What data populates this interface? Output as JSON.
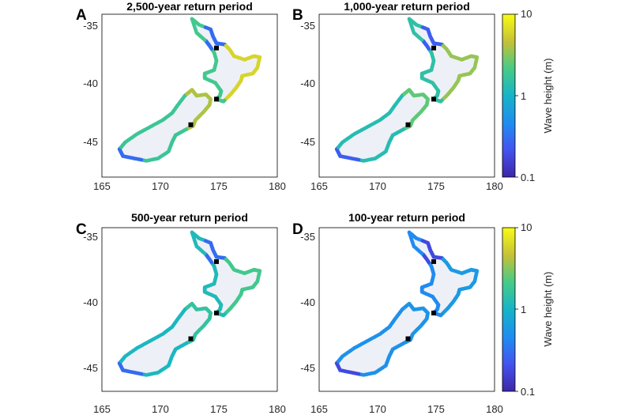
{
  "figure": {
    "panels": [
      {
        "label": "A",
        "title": "2,500-year return period"
      },
      {
        "label": "B",
        "title": "1,000-year return period"
      },
      {
        "label": "C",
        "title": "500-year return period"
      },
      {
        "label": "D",
        "title": "100-year return period"
      }
    ],
    "x_ticks": [
      "165",
      "170",
      "175",
      "180"
    ],
    "y_ticks": [
      "-35",
      "-40",
      "-45"
    ],
    "colorbar": {
      "label": "Wave height (m)",
      "ticks": [
        "10",
        "1",
        "0.1"
      ],
      "scale": "log",
      "range": [
        0.1,
        10
      ],
      "colormap": "parula"
    },
    "colors": {
      "land": "#eef0f7",
      "coast_outline": "#6b6b6b",
      "marker": "#000000"
    }
  },
  "chart_data": [
    {
      "type": "scatter",
      "panel": "A",
      "title": "2,500-year return period",
      "xlim": [
        165,
        180
      ],
      "ylim": [
        -48,
        -34
      ],
      "xticks": [
        165,
        170,
        175,
        180
      ],
      "yticks": [
        -35,
        -40,
        -45
      ],
      "colorbar_range_m": [
        0.1,
        10
      ],
      "typical_wave_height_m": {
        "north_island_east": 6,
        "north_island_west": 2,
        "south_island_east": 4,
        "south_island_west": 1.8,
        "northland_harbours": 0.3
      },
      "markers_lonlat": [
        [
          174.8,
          -36.9
        ],
        [
          174.8,
          -41.3
        ],
        [
          172.6,
          -43.5
        ]
      ]
    },
    {
      "type": "scatter",
      "panel": "B",
      "title": "1,000-year return period",
      "xlim": [
        165,
        180
      ],
      "ylim": [
        -48,
        -34
      ],
      "xticks": [
        165,
        170,
        175,
        180
      ],
      "yticks": [
        -35,
        -40,
        -45
      ],
      "colorbar_range_m": [
        0.1,
        10
      ],
      "typical_wave_height_m": {
        "north_island_east": 3.5,
        "north_island_west": 1.5,
        "south_island_east": 2.5,
        "south_island_west": 1.3,
        "northland_harbours": 0.25
      },
      "markers_lonlat": [
        [
          174.8,
          -36.9
        ],
        [
          174.8,
          -41.3
        ],
        [
          172.6,
          -43.5
        ]
      ]
    },
    {
      "type": "scatter",
      "panel": "C",
      "title": "500-year return period",
      "xlim": [
        165,
        180
      ],
      "ylim": [
        -48,
        -34
      ],
      "xticks": [
        165,
        170,
        175,
        180
      ],
      "yticks": [
        -35,
        -40,
        -45
      ],
      "colorbar_range_m": [
        0.1,
        10
      ],
      "typical_wave_height_m": {
        "north_island_east": 2,
        "north_island_west": 1.2,
        "south_island_east": 1.6,
        "south_island_west": 1.1,
        "northland_harbours": 0.3
      },
      "markers_lonlat": [
        [
          174.8,
          -36.9
        ],
        [
          174.8,
          -41.3
        ],
        [
          172.6,
          -43.5
        ]
      ]
    },
    {
      "type": "scatter",
      "panel": "D",
      "title": "100-year return period",
      "xlim": [
        165,
        180
      ],
      "ylim": [
        -48,
        -34
      ],
      "xticks": [
        165,
        170,
        175,
        180
      ],
      "yticks": [
        -35,
        -40,
        -45
      ],
      "colorbar_range_m": [
        0.1,
        10
      ],
      "typical_wave_height_m": {
        "north_island_east": 0.6,
        "north_island_west": 0.45,
        "south_island_east": 0.55,
        "south_island_west": 0.5,
        "northland_harbours": 0.18
      },
      "markers_lonlat": [
        [
          174.8,
          -36.9
        ],
        [
          174.8,
          -41.3
        ],
        [
          172.6,
          -43.5
        ]
      ]
    }
  ]
}
